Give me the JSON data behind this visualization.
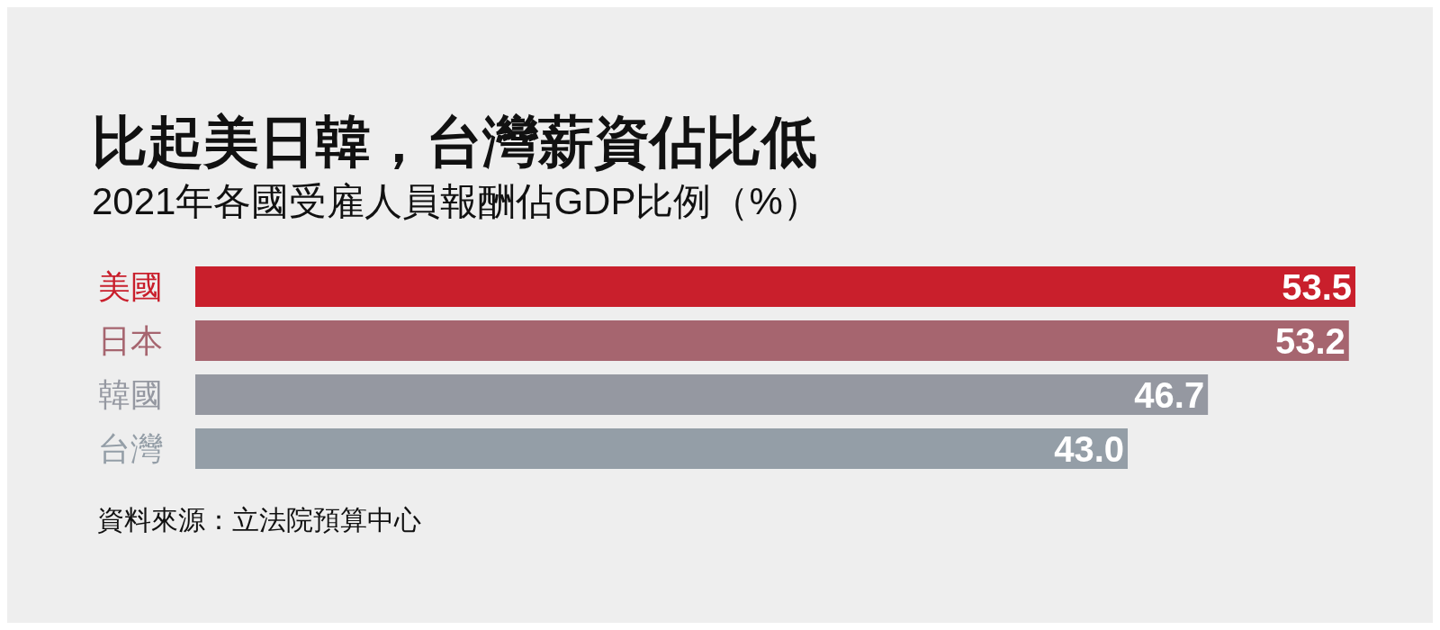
{
  "chart_data": {
    "type": "bar",
    "orientation": "horizontal",
    "title": "比起美日韓，台灣薪資佔比低",
    "subtitle": "2021年各國受雇人員報酬佔GDP比例（%）",
    "categories": [
      "美國",
      "日本",
      "韓國",
      "台灣"
    ],
    "values": [
      53.5,
      53.2,
      46.7,
      43.0
    ],
    "colors": [
      "#c91f2c",
      "#a6656f",
      "#9598a1",
      "#949ea7"
    ],
    "value_labels": [
      "53.5",
      "53.2",
      "46.7",
      "43.0"
    ],
    "tick_labels": "y",
    "annotations": [
      "資料來源：立法院預算中心"
    ]
  }
}
